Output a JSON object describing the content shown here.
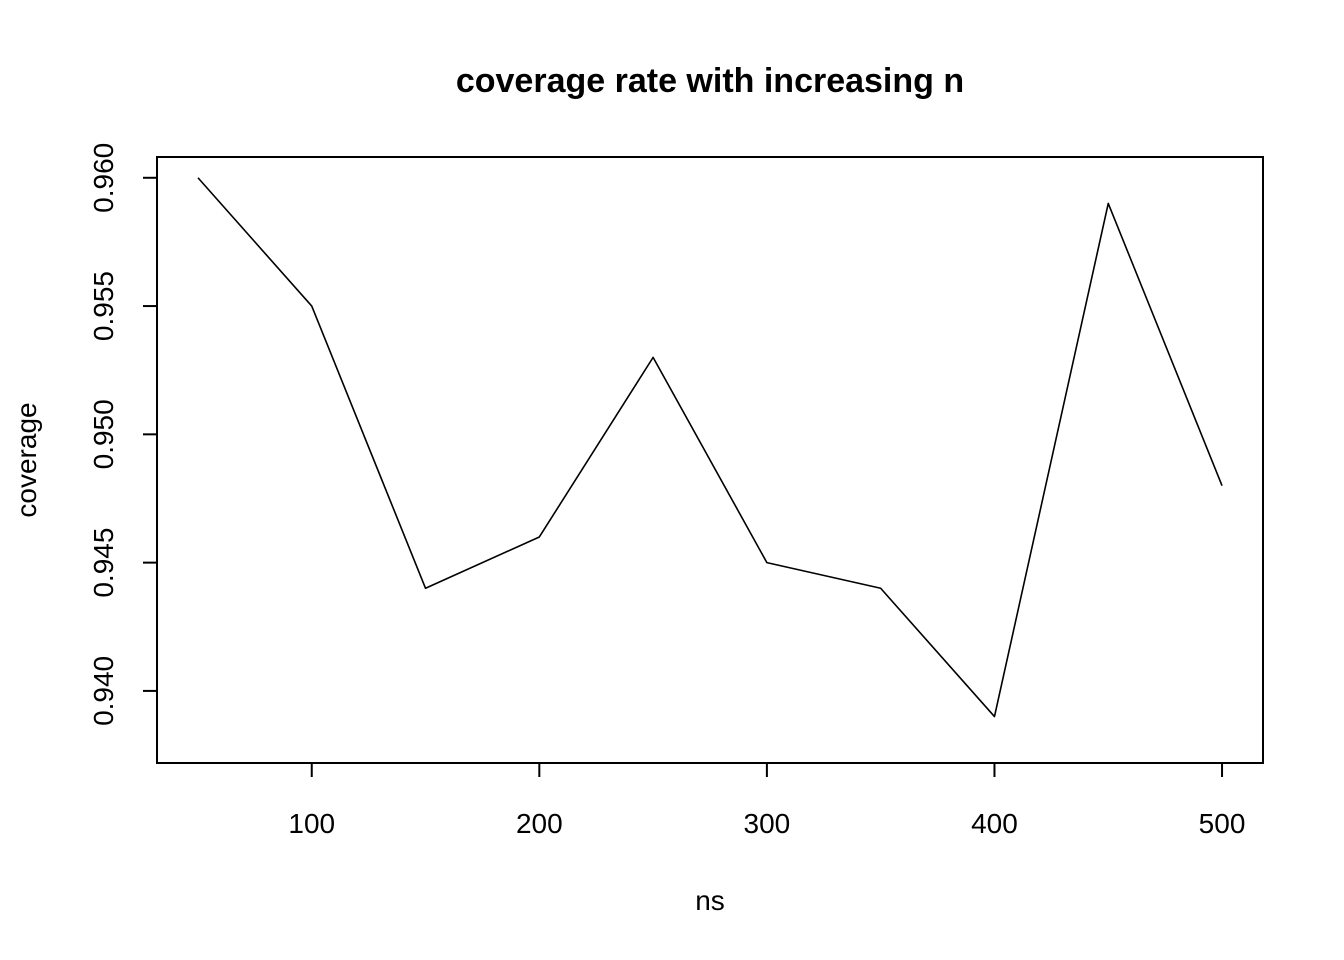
{
  "chart_data": {
    "type": "line",
    "title": "coverage rate with increasing n",
    "xlabel": "ns",
    "ylabel": "coverage",
    "x": [
      50,
      100,
      150,
      200,
      250,
      300,
      350,
      400,
      450,
      500
    ],
    "series": [
      {
        "values": [
          0.96,
          0.955,
          0.944,
          0.946,
          0.953,
          0.945,
          0.944,
          0.939,
          0.959,
          0.948
        ],
        "color": "#000000"
      }
    ],
    "xticks": [
      100,
      200,
      300,
      400,
      500
    ],
    "xtick_labels": [
      "100",
      "200",
      "300",
      "400",
      "500"
    ],
    "yticks": [
      0.94,
      0.945,
      0.95,
      0.955,
      0.96
    ],
    "ytick_labels": [
      "0.940",
      "0.945",
      "0.950",
      "0.955",
      "0.960"
    ],
    "xlim": [
      32,
      518
    ],
    "ylim": [
      0.93719,
      0.96081
    ],
    "grid": false,
    "legend": "none"
  }
}
